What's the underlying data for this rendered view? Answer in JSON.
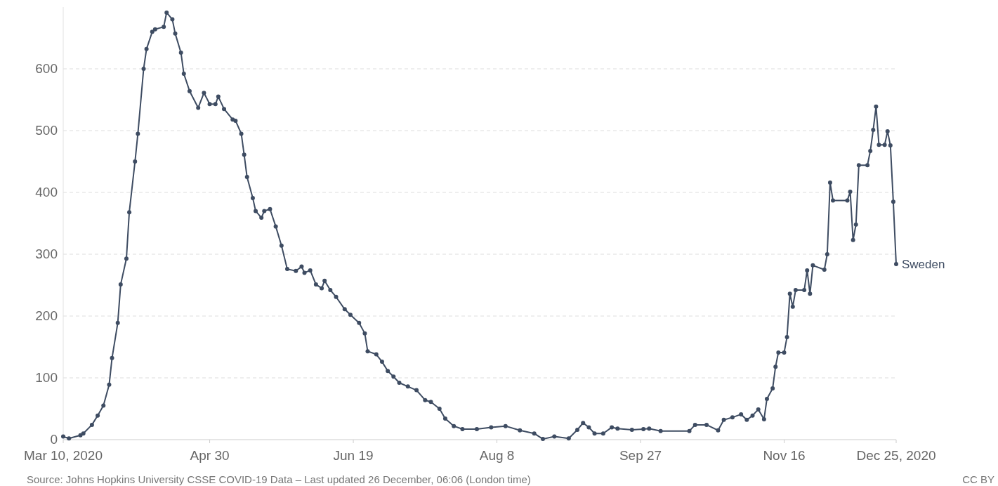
{
  "chart_data": {
    "type": "line",
    "x": [
      "2020-03-10",
      "2020-03-12",
      "2020-03-16",
      "2020-03-17",
      "2020-03-20",
      "2020-03-22",
      "2020-03-24",
      "2020-03-26",
      "2020-03-27",
      "2020-03-29",
      "2020-03-30",
      "2020-04-01",
      "2020-04-02",
      "2020-04-04",
      "2020-04-05",
      "2020-04-07",
      "2020-04-08",
      "2020-04-10",
      "2020-04-11",
      "2020-04-14",
      "2020-04-15",
      "2020-04-17",
      "2020-04-18",
      "2020-04-20",
      "2020-04-21",
      "2020-04-23",
      "2020-04-26",
      "2020-04-28",
      "2020-04-30",
      "2020-05-02",
      "2020-05-03",
      "2020-05-05",
      "2020-05-08",
      "2020-05-09",
      "2020-05-11",
      "2020-05-12",
      "2020-05-13",
      "2020-05-15",
      "2020-05-16",
      "2020-05-18",
      "2020-05-19",
      "2020-05-21",
      "2020-05-23",
      "2020-05-25",
      "2020-05-27",
      "2020-05-30",
      "2020-06-01",
      "2020-06-02",
      "2020-06-04",
      "2020-06-06",
      "2020-06-08",
      "2020-06-09",
      "2020-06-11",
      "2020-06-13",
      "2020-06-16",
      "2020-06-18",
      "2020-06-21",
      "2020-06-23",
      "2020-06-24",
      "2020-06-27",
      "2020-06-29",
      "2020-07-01",
      "2020-07-03",
      "2020-07-05",
      "2020-07-08",
      "2020-07-11",
      "2020-07-14",
      "2020-07-16",
      "2020-07-19",
      "2020-07-21",
      "2020-07-24",
      "2020-07-27",
      "2020-08-01",
      "2020-08-06",
      "2020-08-11",
      "2020-08-16",
      "2020-08-21",
      "2020-08-24",
      "2020-08-28",
      "2020-09-02",
      "2020-09-05",
      "2020-09-07",
      "2020-09-09",
      "2020-09-11",
      "2020-09-14",
      "2020-09-17",
      "2020-09-19",
      "2020-09-24",
      "2020-09-28",
      "2020-09-30",
      "2020-10-04",
      "2020-10-14",
      "2020-10-16",
      "2020-10-20",
      "2020-10-24",
      "2020-10-26",
      "2020-10-29",
      "2020-11-01",
      "2020-11-03",
      "2020-11-05",
      "2020-11-07",
      "2020-11-09",
      "2020-11-10",
      "2020-11-12",
      "2020-11-13",
      "2020-11-14",
      "2020-11-16",
      "2020-11-17",
      "2020-11-18",
      "2020-11-19",
      "2020-11-20",
      "2020-11-23",
      "2020-11-24",
      "2020-11-25",
      "2020-11-26",
      "2020-11-30",
      "2020-12-01",
      "2020-12-02",
      "2020-12-03",
      "2020-12-08",
      "2020-12-09",
      "2020-12-10",
      "2020-12-11",
      "2020-12-12",
      "2020-12-15",
      "2020-12-16",
      "2020-12-17",
      "2020-12-18",
      "2020-12-19",
      "2020-12-21",
      "2020-12-22",
      "2020-12-23",
      "2020-12-24",
      "2020-12-25"
    ],
    "series": [
      {
        "name": "Sweden",
        "color": "#3e4c62",
        "values": [
          5,
          2,
          7,
          10,
          24,
          39,
          55,
          89,
          132,
          189,
          251,
          293,
          368,
          450,
          495,
          600,
          632,
          660,
          664,
          668,
          691,
          680,
          657,
          626,
          592,
          564,
          537,
          561,
          543,
          543,
          555,
          535,
          518,
          516,
          495,
          461,
          425,
          391,
          370,
          359,
          370,
          373,
          345,
          314,
          276,
          273,
          280,
          270,
          274,
          251,
          245,
          257,
          242,
          231,
          211,
          202,
          189,
          172,
          143,
          138,
          126,
          111,
          102,
          92,
          86,
          80,
          64,
          61,
          50,
          34,
          22,
          17,
          17,
          20,
          22,
          15,
          10,
          1,
          5,
          2,
          16,
          27,
          20,
          10,
          10,
          20,
          18,
          16,
          17,
          18,
          14,
          14,
          24,
          24,
          15,
          32,
          36,
          41,
          32,
          39,
          49,
          33,
          66,
          83,
          118,
          141,
          141,
          166,
          236,
          215,
          242,
          242,
          274,
          236,
          282,
          275,
          300,
          416,
          387,
          387,
          401,
          323,
          348,
          444,
          444,
          467,
          501,
          539,
          477,
          477,
          499,
          476,
          385,
          284
        ]
      }
    ],
    "xlim": [
      "2020-03-10",
      "2020-12-25"
    ],
    "xticks": [
      {
        "value": "2020-03-10",
        "label": "Mar 10, 2020"
      },
      {
        "value": "2020-04-30",
        "label": "Apr 30"
      },
      {
        "value": "2020-06-19",
        "label": "Jun 19"
      },
      {
        "value": "2020-08-08",
        "label": "Aug 8"
      },
      {
        "value": "2020-09-27",
        "label": "Sep 27"
      },
      {
        "value": "2020-11-16",
        "label": "Nov 16"
      },
      {
        "value": "2020-12-25",
        "label": "Dec 25, 2020"
      }
    ],
    "ylim": [
      0,
      700
    ],
    "yticks": [
      0,
      100,
      200,
      300,
      400,
      500,
      600
    ],
    "grid": "y",
    "marker": "circle",
    "line_style": "solid",
    "legend": false,
    "annotations": [
      "Source: Johns Hopkins University CSSE COVID-19 Data – Last updated 26 December, 06:06 (London time)",
      "CC BY"
    ]
  }
}
